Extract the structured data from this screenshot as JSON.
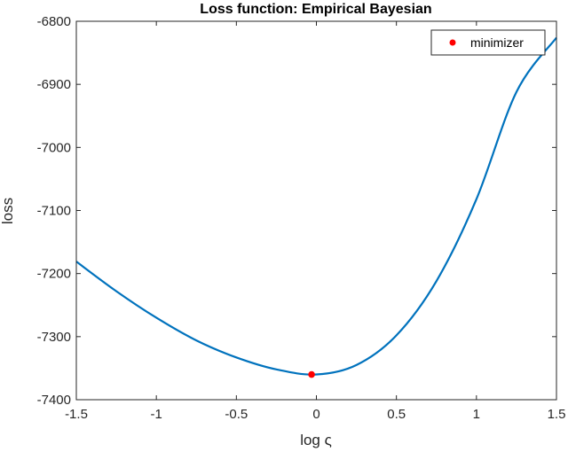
{
  "chart_data": {
    "type": "line",
    "title": "Loss function: Empirical Bayesian",
    "xlabel": "log ς",
    "ylabel": "loss",
    "xlim": [
      -1.5,
      1.5
    ],
    "ylim": [
      -7400,
      -6800
    ],
    "xticks": [
      -1.5,
      -1,
      -0.5,
      0,
      0.5,
      1,
      1.5
    ],
    "xtick_labels": [
      "-1.5",
      "-1",
      "-0.5",
      "0",
      "0.5",
      "1",
      "1.5"
    ],
    "yticks": [
      -7400,
      -7300,
      -7200,
      -7100,
      -7000,
      -6900,
      -6800
    ],
    "ytick_labels": [
      "-7400",
      "-7300",
      "-7200",
      "-7100",
      "-7000",
      "-6900",
      "-6800"
    ],
    "grid": false,
    "legend_position": "top-right",
    "series": [
      {
        "color": "#0072BD",
        "x": [
          -1.5,
          -1.25,
          -1.0,
          -0.75,
          -0.5,
          -0.25,
          0.0,
          0.25,
          0.5,
          0.75,
          1.0,
          1.25,
          1.5
        ],
        "y": [
          -7181,
          -7228,
          -7270,
          -7306,
          -7333,
          -7352,
          -7360,
          -7345,
          -7298,
          -7212,
          -7082,
          -6912,
          -6826
        ]
      }
    ],
    "markers": [
      {
        "name": "minimizer",
        "color": "#FF0000",
        "x": -0.03,
        "y": -7360
      }
    ]
  }
}
